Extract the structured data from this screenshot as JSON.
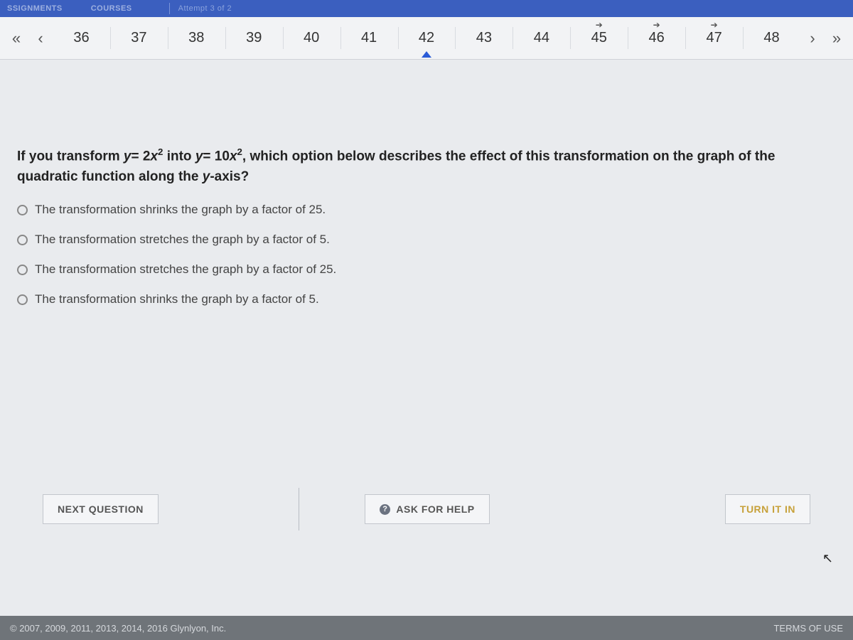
{
  "topbar": {
    "tab1": "SSIGNMENTS",
    "tab2": "COURSES",
    "attempt": "Attempt 3 of 2"
  },
  "nav": {
    "numbers": [
      36,
      37,
      38,
      39,
      40,
      41,
      42,
      43,
      44,
      45,
      46,
      47,
      48
    ],
    "arrows_on": [
      45,
      46,
      47
    ],
    "current": 42
  },
  "question": {
    "prefix": "If you transform ",
    "eq1_a": "y",
    "eq1_b": "= 2",
    "eq1_c": "x",
    "eq1_d": "2",
    "mid": " into ",
    "eq2_a": "y",
    "eq2_b": "= 10",
    "eq2_c": "x",
    "eq2_d": "2",
    "suffix1": ", which option below describes the effect of this transformation on the graph of the quadratic function along the ",
    "yax": "y",
    "suffix2": "-axis?"
  },
  "options": [
    "The transformation shrinks the graph by a factor of 25.",
    "The transformation stretches the graph by a factor of 5.",
    "The transformation stretches the graph by a factor of 25.",
    "The transformation shrinks the graph by a factor of 5."
  ],
  "buttons": {
    "next": "NEXT QUESTION",
    "ask": "ASK FOR HELP",
    "turnin": "TURN IT IN"
  },
  "footer": {
    "copyright": "© 2007, 2009, 2011, 2013, 2014, 2016 Glynlyon, Inc.",
    "terms": "TERMS OF USE"
  }
}
